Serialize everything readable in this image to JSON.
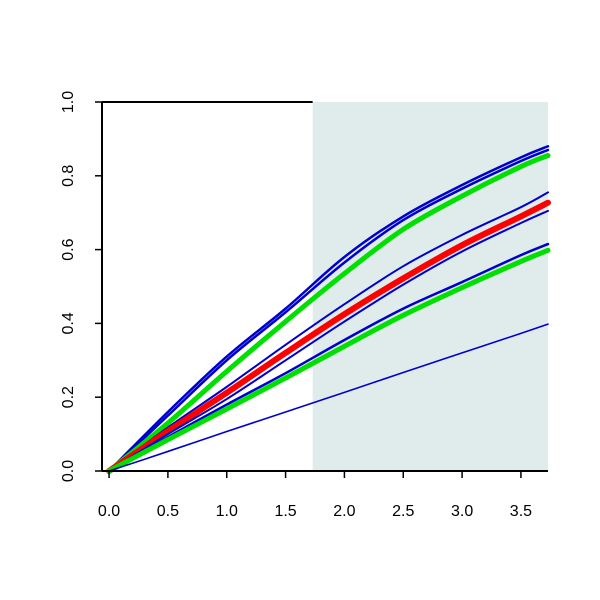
{
  "chart_data": {
    "type": "line",
    "title": "",
    "xlabel": "",
    "ylabel": "",
    "xlim": [
      -0.06,
      3.73
    ],
    "ylim": [
      0.0,
      1.0
    ],
    "grid": false,
    "x_ticks": [
      "0.0",
      "0.5",
      "1.0",
      "1.5",
      "2.0",
      "2.5",
      "3.0",
      "3.5"
    ],
    "y_ticks": [
      "0.0",
      "0.2",
      "0.4",
      "0.6",
      "0.8",
      "1.0"
    ],
    "shaded_region": {
      "x_from": 1.73,
      "x_to": 3.73,
      "color": "#e0ecec"
    },
    "x": [
      0.0,
      0.5,
      1.0,
      1.5,
      2.0,
      2.5,
      3.0,
      3.5,
      3.73
    ],
    "series": [
      {
        "color": "#0000cc",
        "width": 2.5,
        "values": [
          0.0,
          0.16,
          0.31,
          0.44,
          0.58,
          0.69,
          0.775,
          0.85,
          0.88
        ]
      },
      {
        "color": "#0000cc",
        "width": 2.5,
        "values": [
          0.0,
          0.15,
          0.3,
          0.43,
          0.565,
          0.68,
          0.765,
          0.84,
          0.87
        ]
      },
      {
        "color": "#00e000",
        "width": 5.0,
        "values": [
          0.0,
          0.13,
          0.27,
          0.405,
          0.535,
          0.655,
          0.745,
          0.825,
          0.855
        ]
      },
      {
        "color": "#0000cc",
        "width": 2.0,
        "values": [
          0.0,
          0.118,
          0.228,
          0.342,
          0.452,
          0.555,
          0.64,
          0.715,
          0.755
        ]
      },
      {
        "color": "#ff0000",
        "width": 6.0,
        "values": [
          0.0,
          0.108,
          0.212,
          0.32,
          0.425,
          0.522,
          0.612,
          0.69,
          0.727
        ]
      },
      {
        "color": "#0000cc",
        "width": 2.0,
        "values": [
          0.0,
          0.1,
          0.195,
          0.3,
          0.405,
          0.505,
          0.595,
          0.672,
          0.705
        ]
      },
      {
        "color": "#0000cc",
        "width": 2.5,
        "values": [
          0.0,
          0.092,
          0.18,
          0.265,
          0.355,
          0.44,
          0.512,
          0.585,
          0.615
        ]
      },
      {
        "color": "#00e000",
        "width": 5.0,
        "values": [
          0.0,
          0.085,
          0.168,
          0.252,
          0.338,
          0.422,
          0.497,
          0.568,
          0.598
        ]
      },
      {
        "color": "#0000cc",
        "width": 1.6,
        "values": [
          0.0,
          0.053,
          0.107,
          0.16,
          0.213,
          0.267,
          0.32,
          0.373,
          0.398
        ]
      }
    ]
  }
}
